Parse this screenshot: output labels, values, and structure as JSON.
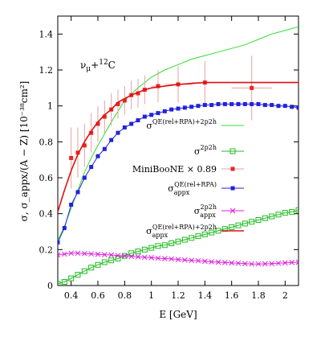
{
  "chart_data": {
    "type": "line",
    "annotation": "ν_μ+¹²C",
    "annotation_parts": {
      "main": "ν",
      "sub": "μ",
      "plus": "+",
      "sup": "12",
      "rest": "C"
    },
    "xlabel": "E [GeV]",
    "ylabel": "σ, σ_appx/(A − Z) [10⁻³⁸cm²]",
    "xlim": [
      0.3,
      2.1
    ],
    "ylim": [
      0,
      1.5
    ],
    "x_ticks": [
      0.4,
      0.6,
      0.8,
      1.0,
      1.2,
      1.4,
      1.6,
      1.8,
      2.0
    ],
    "x_tick_labels": [
      "0.4",
      "0.6",
      "0.8",
      "1",
      "1.2",
      "1.4",
      "1.6",
      "1.8",
      "2"
    ],
    "y_ticks": [
      0,
      0.2,
      0.4,
      0.6,
      0.8,
      1.0,
      1.2,
      1.4
    ],
    "y_tick_labels": [
      "0",
      "0.2",
      "0.4",
      "0.6",
      "0.8",
      "1",
      "1.2",
      "1.4"
    ],
    "grid": false,
    "legend_position": "right",
    "series": [
      {
        "key": "qe_total",
        "name": "σ^QE(rel+RPA)+2p2h",
        "name_parts": {
          "base": "σ",
          "sup": "QE(rel+RPA)+2p2h",
          "sub": ""
        },
        "color": "#33dd33",
        "marker": "none",
        "x": [
          0.3,
          0.35,
          0.4,
          0.45,
          0.5,
          0.55,
          0.6,
          0.7,
          0.8,
          0.9,
          1.0,
          1.1,
          1.2,
          1.3,
          1.4,
          1.5,
          1.6,
          1.7,
          1.8,
          1.9,
          2.0,
          2.1
        ],
        "y": [
          0.25,
          0.33,
          0.43,
          0.53,
          0.63,
          0.71,
          0.78,
          0.91,
          1.03,
          1.1,
          1.16,
          1.2,
          1.23,
          1.26,
          1.28,
          1.3,
          1.32,
          1.34,
          1.37,
          1.4,
          1.42,
          1.44
        ]
      },
      {
        "key": "twop2h",
        "name": "σ^2p2h",
        "name_parts": {
          "base": "σ",
          "sup": "2p2h",
          "sub": ""
        },
        "color": "#22bb22",
        "marker": "square",
        "x": [
          0.3,
          0.35,
          0.4,
          0.45,
          0.5,
          0.55,
          0.6,
          0.65,
          0.7,
          0.75,
          0.8,
          0.85,
          0.9,
          0.95,
          1.0,
          1.05,
          1.1,
          1.15,
          1.2,
          1.25,
          1.3,
          1.35,
          1.4,
          1.45,
          1.5,
          1.55,
          1.6,
          1.65,
          1.7,
          1.75,
          1.8,
          1.85,
          1.9,
          1.95,
          2.0,
          2.05,
          2.1
        ],
        "y": [
          0.01,
          0.02,
          0.04,
          0.06,
          0.08,
          0.1,
          0.115,
          0.13,
          0.14,
          0.15,
          0.165,
          0.18,
          0.19,
          0.2,
          0.21,
          0.22,
          0.225,
          0.235,
          0.245,
          0.255,
          0.265,
          0.275,
          0.285,
          0.295,
          0.305,
          0.315,
          0.325,
          0.335,
          0.345,
          0.355,
          0.365,
          0.375,
          0.385,
          0.395,
          0.405,
          0.41,
          0.42
        ]
      },
      {
        "key": "miniboone",
        "name": "MiniBooNE × 0.89",
        "name_parts": {
          "base": "MiniBooNE × 0.89",
          "sup": "",
          "sub": ""
        },
        "color": "#ee2222",
        "marker": "filled-square-errorbar",
        "x": [
          0.4,
          0.45,
          0.5,
          0.55,
          0.6,
          0.65,
          0.7,
          0.75,
          0.8,
          0.85,
          0.9,
          0.95,
          1.05,
          1.2,
          1.4,
          1.75
        ],
        "y": [
          0.71,
          0.74,
          0.78,
          0.85,
          0.9,
          0.94,
          0.98,
          1.01,
          1.03,
          1.06,
          1.07,
          1.09,
          1.11,
          1.12,
          1.13,
          1.1
        ],
        "y_err": [
          0.17,
          0.14,
          0.12,
          0.11,
          0.1,
          0.09,
          0.09,
          0.08,
          0.08,
          0.08,
          0.08,
          0.08,
          0.09,
          0.1,
          0.12,
          0.18
        ],
        "x_err": [
          0.0,
          0.0,
          0.0,
          0.0,
          0.0,
          0.0,
          0.0,
          0.0,
          0.0,
          0.0,
          0.0,
          0.0,
          0.05,
          0.1,
          0.1,
          0.15
        ]
      },
      {
        "key": "qe_appx",
        "name": "σ_appx^QE(rel+RPA)",
        "name_parts": {
          "base": "σ",
          "sup": "QE(rel+RPA)",
          "sub": "appx"
        },
        "color": "#2222dd",
        "marker": "filled-square",
        "x": [
          0.3,
          0.35,
          0.4,
          0.45,
          0.5,
          0.55,
          0.6,
          0.65,
          0.7,
          0.75,
          0.8,
          0.85,
          0.9,
          0.95,
          1.0,
          1.05,
          1.1,
          1.15,
          1.2,
          1.25,
          1.3,
          1.35,
          1.4,
          1.45,
          1.5,
          1.55,
          1.6,
          1.65,
          1.7,
          1.75,
          1.8,
          1.85,
          1.9,
          1.95,
          2.0,
          2.05,
          2.1
        ],
        "y": [
          0.24,
          0.32,
          0.45,
          0.52,
          0.6,
          0.66,
          0.72,
          0.76,
          0.81,
          0.85,
          0.88,
          0.9,
          0.92,
          0.94,
          0.95,
          0.96,
          0.97,
          0.98,
          0.985,
          0.99,
          0.995,
          1.0,
          1.005,
          1.005,
          1.01,
          1.01,
          1.01,
          1.01,
          1.01,
          1.01,
          1.01,
          1.005,
          1.005,
          1.0,
          1.0,
          0.995,
          0.99
        ]
      },
      {
        "key": "twop2h_appx",
        "name": "σ_appx^2p2h",
        "name_parts": {
          "base": "σ",
          "sup": "2p2h",
          "sub": "appx"
        },
        "color": "#dd22dd",
        "marker": "cross",
        "x": [
          0.3,
          0.35,
          0.4,
          0.45,
          0.5,
          0.55,
          0.6,
          0.65,
          0.7,
          0.75,
          0.8,
          0.85,
          0.9,
          0.95,
          1.0,
          1.05,
          1.1,
          1.15,
          1.2,
          1.25,
          1.3,
          1.35,
          1.4,
          1.45,
          1.5,
          1.55,
          1.6,
          1.65,
          1.7,
          1.75,
          1.8,
          1.85,
          1.9,
          1.95,
          2.0,
          2.05,
          2.1
        ],
        "y": [
          0.17,
          0.175,
          0.18,
          0.18,
          0.178,
          0.176,
          0.174,
          0.172,
          0.17,
          0.167,
          0.165,
          0.162,
          0.16,
          0.157,
          0.155,
          0.152,
          0.15,
          0.148,
          0.145,
          0.142,
          0.14,
          0.138,
          0.135,
          0.132,
          0.13,
          0.128,
          0.126,
          0.124,
          0.122,
          0.12,
          0.12,
          0.121,
          0.122,
          0.124,
          0.126,
          0.128,
          0.13
        ]
      },
      {
        "key": "total_appx",
        "name": "σ_appx^QE(rel+RPA)+2p2h",
        "name_parts": {
          "base": "σ",
          "sup": "QE(rel+RPA)+2p2h",
          "sub": "appx"
        },
        "color": "#dd1111",
        "marker": "none",
        "x": [
          0.3,
          0.35,
          0.4,
          0.45,
          0.5,
          0.55,
          0.6,
          0.65,
          0.7,
          0.75,
          0.8,
          0.85,
          0.9,
          0.95,
          1.0,
          1.1,
          1.2,
          1.3,
          1.4,
          1.5,
          1.6,
          1.7,
          1.8,
          1.9,
          2.0,
          2.1
        ],
        "y": [
          0.41,
          0.53,
          0.64,
          0.73,
          0.8,
          0.86,
          0.91,
          0.95,
          0.98,
          1.02,
          1.04,
          1.06,
          1.075,
          1.09,
          1.1,
          1.11,
          1.12,
          1.125,
          1.13,
          1.13,
          1.13,
          1.13,
          1.13,
          1.13,
          1.13,
          1.13
        ]
      }
    ]
  }
}
